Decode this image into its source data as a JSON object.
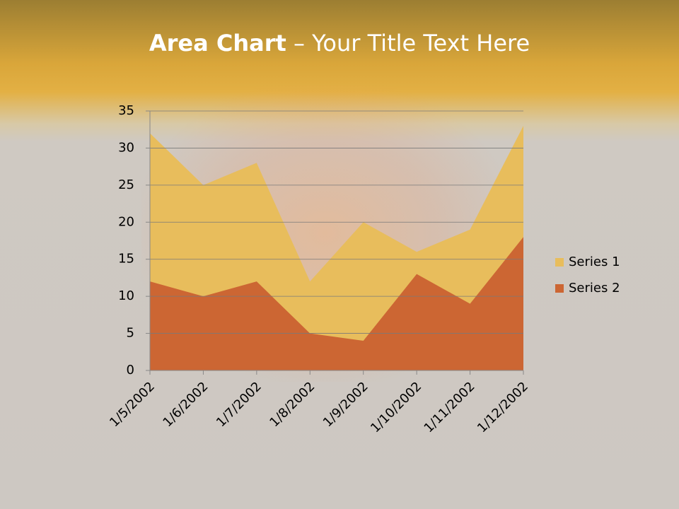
{
  "slide": {
    "title_emphasis": "Area Chart",
    "title_rest": "– Your Title Text Here"
  },
  "chart_data": {
    "type": "area",
    "categories": [
      "1/5/2002",
      "1/6/2002",
      "1/7/2002",
      "1/8/2002",
      "1/9/2002",
      "1/10/2002",
      "1/11/2002",
      "1/12/2002"
    ],
    "series": [
      {
        "name": "Series 1",
        "color": "#e8bd5c",
        "values": [
          32,
          25,
          28,
          12,
          20,
          16,
          19,
          33
        ]
      },
      {
        "name": "Series 2",
        "color": "#cc6633",
        "values": [
          12,
          10,
          12,
          5,
          4,
          13,
          9,
          18
        ]
      }
    ],
    "ylim": [
      0,
      35
    ],
    "yticks": [
      0,
      5,
      10,
      15,
      20,
      25,
      30,
      35
    ],
    "grid": true,
    "legend": "right"
  }
}
